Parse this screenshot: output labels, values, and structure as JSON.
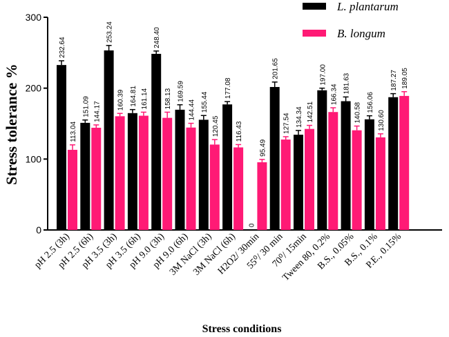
{
  "chart_data": {
    "type": "bar",
    "title": "",
    "xlabel": "Stress conditions",
    "ylabel": "Stress tolerance %",
    "ylim": [
      0,
      300
    ],
    "yticks": [
      "0",
      "100",
      "200",
      "300"
    ],
    "categories": [
      "pH 2.5 (3h)",
      "pH 2.5 (6h)",
      "pH 3.5 (3h)",
      "pH 3.5 (6h)",
      "pH 9.0 (3h)",
      "pH 9.0 (6h)",
      "3M NaCl (3h)",
      "3M NaCl (6h)",
      "H2O2/ 30min",
      "55⁰/ 30 min",
      "70⁰/ 15min",
      "Tween 80, 0.2%",
      "B.S., 0.05%",
      "B.S., 0.1%",
      "P.E., 0.15%"
    ],
    "series": [
      {
        "name": "L. plantarum",
        "color": "#000000",
        "values": [
          232.64,
          151.09,
          253.24,
          164.81,
          248.4,
          169.59,
          155.44,
          177.08,
          0,
          201.65,
          134.34,
          197.0,
          181.63,
          156.06,
          187.27
        ],
        "labels": [
          "232.64",
          "151.09",
          "253.24",
          "164.81",
          "248.40",
          "169.59",
          "155.44",
          "177.08",
          "0",
          "201.65",
          "134.34",
          "197.00",
          "181.63",
          "156.06",
          "187.27"
        ],
        "errors": [
          6,
          4,
          7,
          5,
          4,
          7,
          6,
          4,
          0,
          7,
          6,
          3,
          6,
          5,
          5
        ]
      },
      {
        "name": "B. longum",
        "color": "#ff1a75",
        "values": [
          113.04,
          144.17,
          160.39,
          161.14,
          158.13,
          144.44,
          120.45,
          116.43,
          95.49,
          127.54,
          142.51,
          166.34,
          140.58,
          130.6,
          189.05
        ],
        "labels": [
          "113.04",
          "144.17",
          "160.39",
          "161.14",
          "158.13",
          "144.44",
          "120.45",
          "116.43",
          "95.49",
          "127.54",
          "142.51",
          "166.34",
          "140.58",
          "130.60",
          "189.05"
        ],
        "errors": [
          7,
          4,
          4,
          5,
          8,
          6,
          7,
          4,
          4,
          4,
          5,
          6,
          6,
          5,
          6
        ]
      }
    ],
    "legend_position": "top-right"
  }
}
